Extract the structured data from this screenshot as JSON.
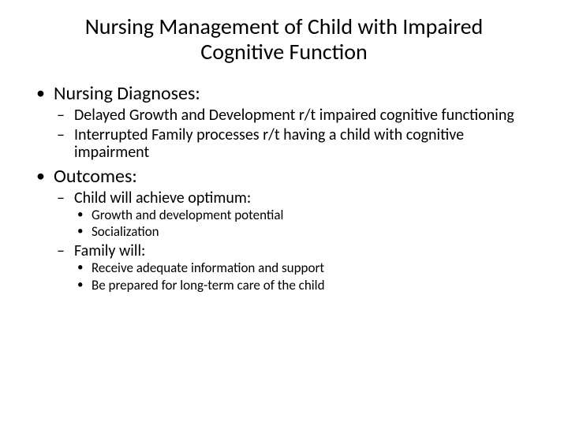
{
  "title": "Nursing Management of Child with Impaired Cognitive Function",
  "sections": [
    {
      "heading": "Nursing Diagnoses:",
      "items": [
        {
          "text": "Delayed Growth and Development r/t impaired cognitive functioning"
        },
        {
          "text": "Interrupted Family processes r/t having a child with cognitive impairment"
        }
      ]
    },
    {
      "heading": "Outcomes:",
      "items": [
        {
          "text": "Child will achieve optimum:",
          "subitems": [
            "Growth and development potential",
            "Socialization"
          ]
        },
        {
          "text": "Family will:",
          "gap": true,
          "subitems": [
            "Receive adequate information and support",
            "Be prepared for long-term care of the child"
          ]
        }
      ]
    }
  ]
}
